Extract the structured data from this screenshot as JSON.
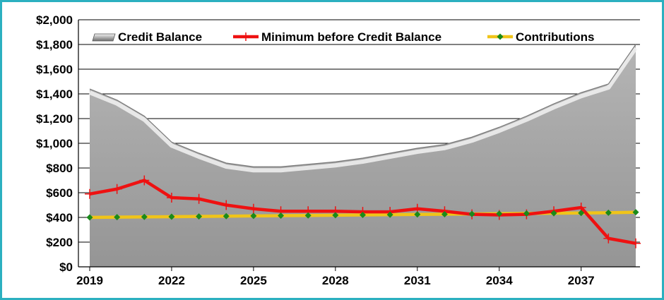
{
  "chart_data": {
    "type": "area",
    "x": [
      2019,
      2020,
      2021,
      2022,
      2023,
      2024,
      2025,
      2026,
      2027,
      2028,
      2029,
      2030,
      2031,
      2032,
      2033,
      2034,
      2035,
      2036,
      2037,
      2038,
      2039
    ],
    "x_tick_labels": [
      "2019",
      "2022",
      "2025",
      "2028",
      "2031",
      "2034",
      "2037"
    ],
    "x_tick_values": [
      2019,
      2022,
      2025,
      2028,
      2031,
      2034,
      2037
    ],
    "y_tick_labels": [
      "$0",
      "$200",
      "$400",
      "$600",
      "$800",
      "$1,000",
      "$1,200",
      "$1,400",
      "$1,600",
      "$1,800",
      "$2,000"
    ],
    "ylim": [
      0,
      2000
    ],
    "grid": true,
    "legend_position": "top",
    "series": [
      {
        "name": "Credit Balance",
        "kind": "area",
        "color": "#a6a6a6",
        "values": [
          1440,
          1350,
          1220,
          1010,
          920,
          840,
          810,
          810,
          830,
          850,
          880,
          920,
          960,
          990,
          1050,
          1130,
          1220,
          1320,
          1410,
          1480,
          1800
        ]
      },
      {
        "name": "Minimum before Credit Balance",
        "kind": "line",
        "color": "#ee1111",
        "values": [
          590,
          630,
          700,
          560,
          550,
          500,
          470,
          450,
          450,
          450,
          445,
          445,
          470,
          450,
          425,
          420,
          425,
          450,
          480,
          230,
          190
        ]
      },
      {
        "name": "Contributions",
        "kind": "line",
        "color": "#f0c419",
        "marker_color": "#1a8a1a",
        "values": [
          400,
          402,
          404,
          406,
          408,
          410,
          412,
          414,
          416,
          418,
          420,
          422,
          424,
          426,
          428,
          430,
          432,
          434,
          436,
          438,
          442
        ]
      }
    ]
  }
}
